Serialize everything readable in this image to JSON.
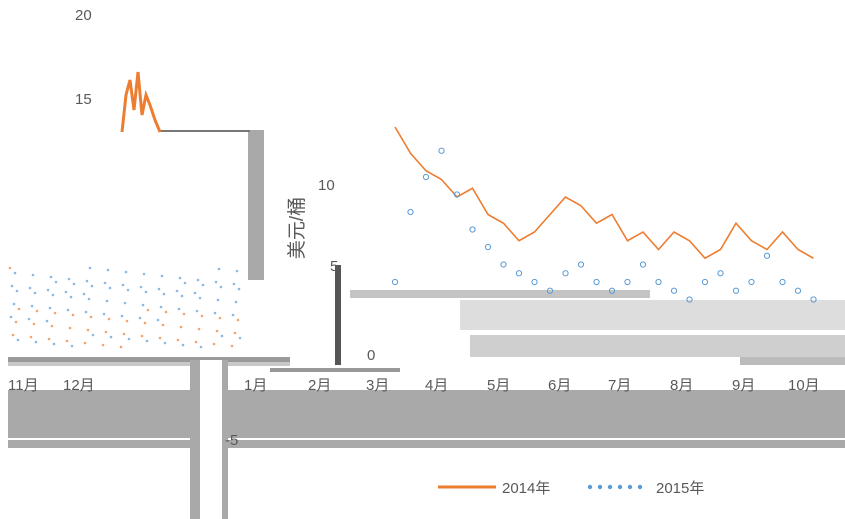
{
  "chart_data": {
    "type": "line",
    "ylabel": "美元/桶",
    "ylim": [
      -5,
      20
    ],
    "y_ticks": [
      "-5",
      "0",
      "5",
      "10",
      "15",
      "20"
    ],
    "months": [
      "11月",
      "12月",
      "1月",
      "2月",
      "3月",
      "4月",
      "5月",
      "6月",
      "7月",
      "8月",
      "9月",
      "10月"
    ],
    "x": [
      8,
      8.5,
      9,
      9.5,
      10,
      10.5,
      11,
      11.5,
      12,
      12.5,
      13,
      13.5,
      14,
      14.5,
      15,
      15.5,
      16,
      16.5,
      17,
      17.5,
      18,
      18.5,
      19,
      19.5,
      20,
      20.5,
      21,
      21.5
    ],
    "series": [
      {
        "name": "2014年",
        "style": "line",
        "color": "#ED7D31",
        "values": [
          12,
          10.5,
          9.5,
          9,
          8,
          8.5,
          7,
          6.5,
          5.5,
          6,
          7,
          8,
          7.5,
          6.5,
          7,
          5.5,
          6,
          5,
          6,
          5.5,
          4.5,
          5,
          6.5,
          5.5,
          5,
          6,
          5,
          4.5
        ]
      },
      {
        "name": "2015年",
        "style": "dotted",
        "color": "#5B9BD5",
        "values": [
          4,
          8,
          10,
          11.5,
          9,
          7,
          6,
          5,
          4.5,
          4,
          3.5,
          4.5,
          5,
          4,
          3.5,
          4,
          5,
          4,
          3.5,
          3,
          4,
          4.5,
          3.5,
          4,
          5.5,
          4,
          3.5,
          3
        ]
      }
    ],
    "legend_position": "bottom",
    "grid": false
  }
}
